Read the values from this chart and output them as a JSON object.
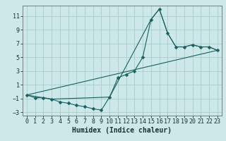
{
  "title": "",
  "xlabel": "Humidex (Indice chaleur)",
  "bg_color": "#cce8e8",
  "grid_color": "#aacccc",
  "line_color": "#1a6060",
  "xlim": [
    -0.5,
    23.5
  ],
  "ylim": [
    -3.5,
    12.5
  ],
  "xticks": [
    0,
    1,
    2,
    3,
    4,
    5,
    6,
    7,
    8,
    9,
    10,
    11,
    12,
    13,
    14,
    15,
    16,
    17,
    18,
    19,
    20,
    21,
    22,
    23
  ],
  "yticks": [
    -3,
    -1,
    1,
    3,
    5,
    7,
    9,
    11
  ],
  "line1_x": [
    0,
    1,
    2,
    3,
    4,
    5,
    6,
    7,
    8,
    9,
    10,
    11,
    12,
    13,
    14,
    15,
    16,
    17,
    18,
    19,
    20,
    21,
    22,
    23
  ],
  "line1_y": [
    -0.5,
    -0.9,
    -0.9,
    -1.1,
    -1.5,
    -1.7,
    -2.0,
    -2.2,
    -2.5,
    -2.7,
    -0.8,
    2.0,
    2.5,
    3.0,
    5.0,
    10.5,
    12.0,
    8.5,
    6.5,
    6.5,
    6.8,
    6.5,
    6.5,
    6.0
  ],
  "line2_x": [
    0,
    3,
    10,
    15,
    16,
    17,
    18,
    19,
    20,
    21,
    22,
    23
  ],
  "line2_y": [
    -0.5,
    -1.1,
    -0.8,
    10.5,
    12.0,
    8.5,
    6.5,
    6.5,
    6.8,
    6.5,
    6.5,
    6.0
  ],
  "line3_x": [
    0,
    23
  ],
  "line3_y": [
    -0.5,
    6.0
  ],
  "marker_size": 2.5,
  "font_size": 6,
  "xlabel_fontsize": 7
}
